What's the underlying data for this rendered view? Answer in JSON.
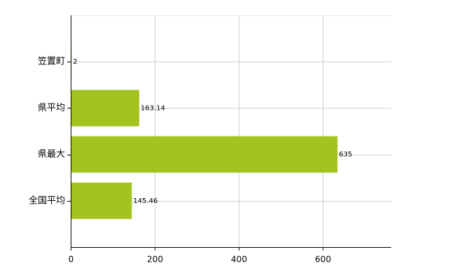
{
  "chart_data": {
    "type": "bar",
    "orientation": "horizontal",
    "categories": [
      "笠置町",
      "県平均",
      "県最大",
      "全国平均"
    ],
    "values": [
      2,
      163.14,
      635,
      145.46
    ],
    "color": "#a3c41e",
    "xlim": [
      0,
      763
    ],
    "xticks": [
      0,
      200,
      400,
      600
    ],
    "grid": true
  }
}
